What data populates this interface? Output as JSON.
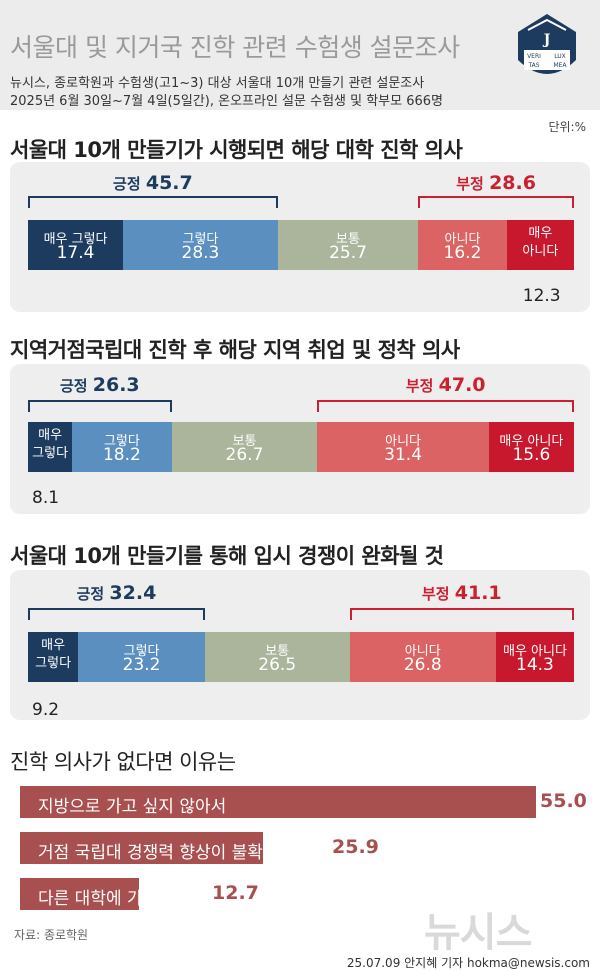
{
  "header": {
    "title": "서울대 및 지거국 진학 관련 수험생 설문조사",
    "subtitle1": "뉴시스, 종로학원과 수험생(고1~3) 대상 서울대 10개 만들기 관련 설문조사",
    "subtitle2": "2025년 6월 30일~7월 4일(5일간), 온오프라인 설문 수험생 및 학부모 666명",
    "unit": "단위:%",
    "logo_text": [
      "VERI",
      "LUX",
      "TAS",
      "MEA"
    ]
  },
  "chart_data": [
    {
      "type": "bar",
      "title": "서울대 10개 만들기가 시행되면 해당 대학 진학 의사",
      "categories": [
        "매우 그렇다",
        "그렇다",
        "보통",
        "아니다",
        "매우 아니다"
      ],
      "values": [
        17.4,
        28.3,
        25.7,
        16.2,
        12.3
      ],
      "positive": {
        "label": "긍정",
        "value": 45.7
      },
      "negative": {
        "label": "부정",
        "value": 28.6
      }
    },
    {
      "type": "bar",
      "title": "지역거점국립대 진학 후 해당 지역 취업 및 정착 의사",
      "categories": [
        "매우 그렇다",
        "그렇다",
        "보통",
        "아니다",
        "매우 아니다"
      ],
      "values": [
        8.1,
        18.2,
        26.7,
        31.4,
        15.6
      ],
      "positive": {
        "label": "긍정",
        "value": 26.3
      },
      "negative": {
        "label": "부정",
        "value": 47.0
      }
    },
    {
      "type": "bar",
      "title": "서울대 10개 만들기를 통해 입시 경쟁이 완화될 것",
      "categories": [
        "매우 그렇다",
        "그렇다",
        "보통",
        "아니다",
        "매우 아니다"
      ],
      "values": [
        9.2,
        23.2,
        26.5,
        26.8,
        14.3
      ],
      "positive": {
        "label": "긍정",
        "value": 32.4
      },
      "negative": {
        "label": "부정",
        "value": 41.1
      }
    },
    {
      "type": "bar",
      "title": "진학 의사가 없다면 이유는",
      "categories": [
        "지방으로 가고 싶지 않아서",
        "거점 국립대 경쟁력 향상이 불확실해서",
        "다른 대학에 가고 싶어서"
      ],
      "values": [
        55.0,
        25.9,
        12.7
      ]
    }
  ],
  "display_values": [
    [
      "17.4",
      "28.3",
      "25.7",
      "16.2",
      "12.3"
    ],
    [
      "8.1",
      "18.2",
      "26.7",
      "31.4",
      "15.6"
    ],
    [
      "9.2",
      "23.2",
      "26.5",
      "26.8",
      "14.3"
    ]
  ],
  "display_totals": [
    [
      "45.7",
      "28.6"
    ],
    [
      "26.3",
      "47.0"
    ],
    [
      "32.4",
      "41.1"
    ]
  ],
  "seg_labels": [
    [
      "매우 그렇다",
      "그렇다",
      "보통",
      "아니다",
      "매우\n아니다"
    ],
    [
      "매우\n그렇다",
      "그렇다",
      "보통",
      "아니다",
      "매우 아니다"
    ],
    [
      "매우\n그렇다",
      "그렇다",
      "보통",
      "아니다",
      "매우 아니다"
    ]
  ],
  "reasons_display": [
    "55.0",
    "25.9",
    "12.7"
  ],
  "colors": {
    "very_yes": "#1c3b5e",
    "yes": "#5b8fc0",
    "neutral": "#aab59c",
    "no": "#db6363",
    "very_no": "#c8182d",
    "positive": "#1c3b5e",
    "negative": "#cc2030",
    "reason_bar": "#a84f4f"
  },
  "footer": {
    "source": "자료: 종로학원",
    "credit": "25.07.09 안지혜 기자 hokma@newsis.com",
    "watermark": "뉴시스"
  }
}
